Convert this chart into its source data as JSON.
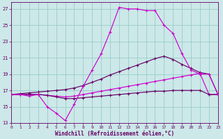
{
  "xlabel": "Windchill (Refroidissement éolien,°C)",
  "xlim": [
    0,
    23
  ],
  "ylim": [
    13,
    27.8
  ],
  "ytick_vals": [
    13,
    15,
    17,
    19,
    21,
    23,
    25,
    27
  ],
  "xtick_vals": [
    0,
    1,
    2,
    3,
    4,
    5,
    6,
    7,
    8,
    9,
    10,
    11,
    12,
    13,
    14,
    15,
    16,
    17,
    18,
    19,
    20,
    21,
    22,
    23
  ],
  "bg_color": "#cce8e8",
  "grid_color": "#99cccc",
  "lc1": "#cc00cc",
  "lc2": "#660066",
  "s1_x": [
    0,
    1,
    2,
    3,
    4,
    5,
    6,
    7,
    8,
    9,
    10,
    11,
    12,
    13,
    14,
    15,
    16,
    17,
    18,
    19,
    20,
    21,
    22,
    23
  ],
  "s1_y": [
    16.5,
    16.5,
    16.3,
    16.5,
    15.0,
    14.2,
    13.3,
    15.3,
    17.5,
    19.5,
    21.5,
    24.2,
    27.2,
    27.0,
    27.0,
    26.8,
    26.8,
    25.0,
    24.0,
    21.5,
    19.5,
    19.0,
    19.0,
    16.5
  ],
  "s2_x": [
    0,
    1,
    2,
    3,
    4,
    5,
    6,
    7,
    8,
    9,
    10,
    11,
    12,
    13,
    14,
    15,
    16,
    17,
    18,
    19,
    20,
    21,
    22,
    23
  ],
  "s2_y": [
    16.5,
    16.6,
    16.7,
    16.8,
    16.9,
    17.0,
    17.1,
    17.3,
    17.6,
    18.0,
    18.4,
    18.9,
    19.3,
    19.7,
    20.1,
    20.5,
    20.9,
    21.2,
    20.8,
    20.2,
    19.7,
    19.2,
    19.0,
    16.5
  ],
  "s3_x": [
    0,
    1,
    2,
    3,
    4,
    5,
    6,
    7,
    8,
    9,
    10,
    11,
    12,
    13,
    14,
    15,
    16,
    17,
    18,
    19,
    20,
    21,
    22,
    23
  ],
  "s3_y": [
    16.5,
    16.5,
    16.5,
    16.5,
    16.4,
    16.3,
    16.2,
    16.3,
    16.5,
    16.7,
    16.9,
    17.1,
    17.3,
    17.5,
    17.7,
    17.9,
    18.1,
    18.3,
    18.5,
    18.7,
    18.9,
    19.1,
    16.5,
    16.5
  ],
  "s4_x": [
    0,
    1,
    2,
    3,
    4,
    5,
    6,
    7,
    8,
    9,
    10,
    11,
    12,
    13,
    14,
    15,
    16,
    17,
    18,
    19,
    20,
    21,
    22,
    23
  ],
  "s4_y": [
    16.5,
    16.5,
    16.5,
    16.5,
    16.4,
    16.2,
    16.0,
    16.0,
    16.1,
    16.2,
    16.3,
    16.4,
    16.5,
    16.6,
    16.7,
    16.8,
    16.9,
    16.9,
    17.0,
    17.0,
    17.0,
    17.0,
    16.5,
    16.5
  ]
}
